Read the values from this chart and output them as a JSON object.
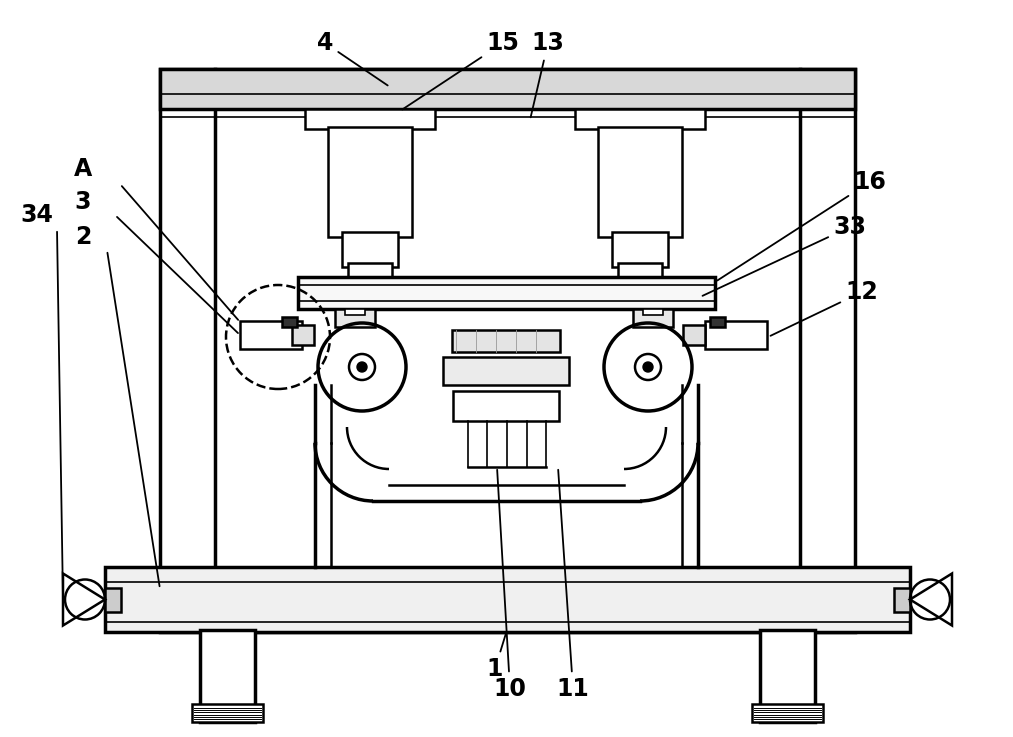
{
  "bg_color": "#ffffff",
  "line_color": "#000000",
  "fig_width": 10.13,
  "fig_height": 7.37,
  "dpi": 100
}
